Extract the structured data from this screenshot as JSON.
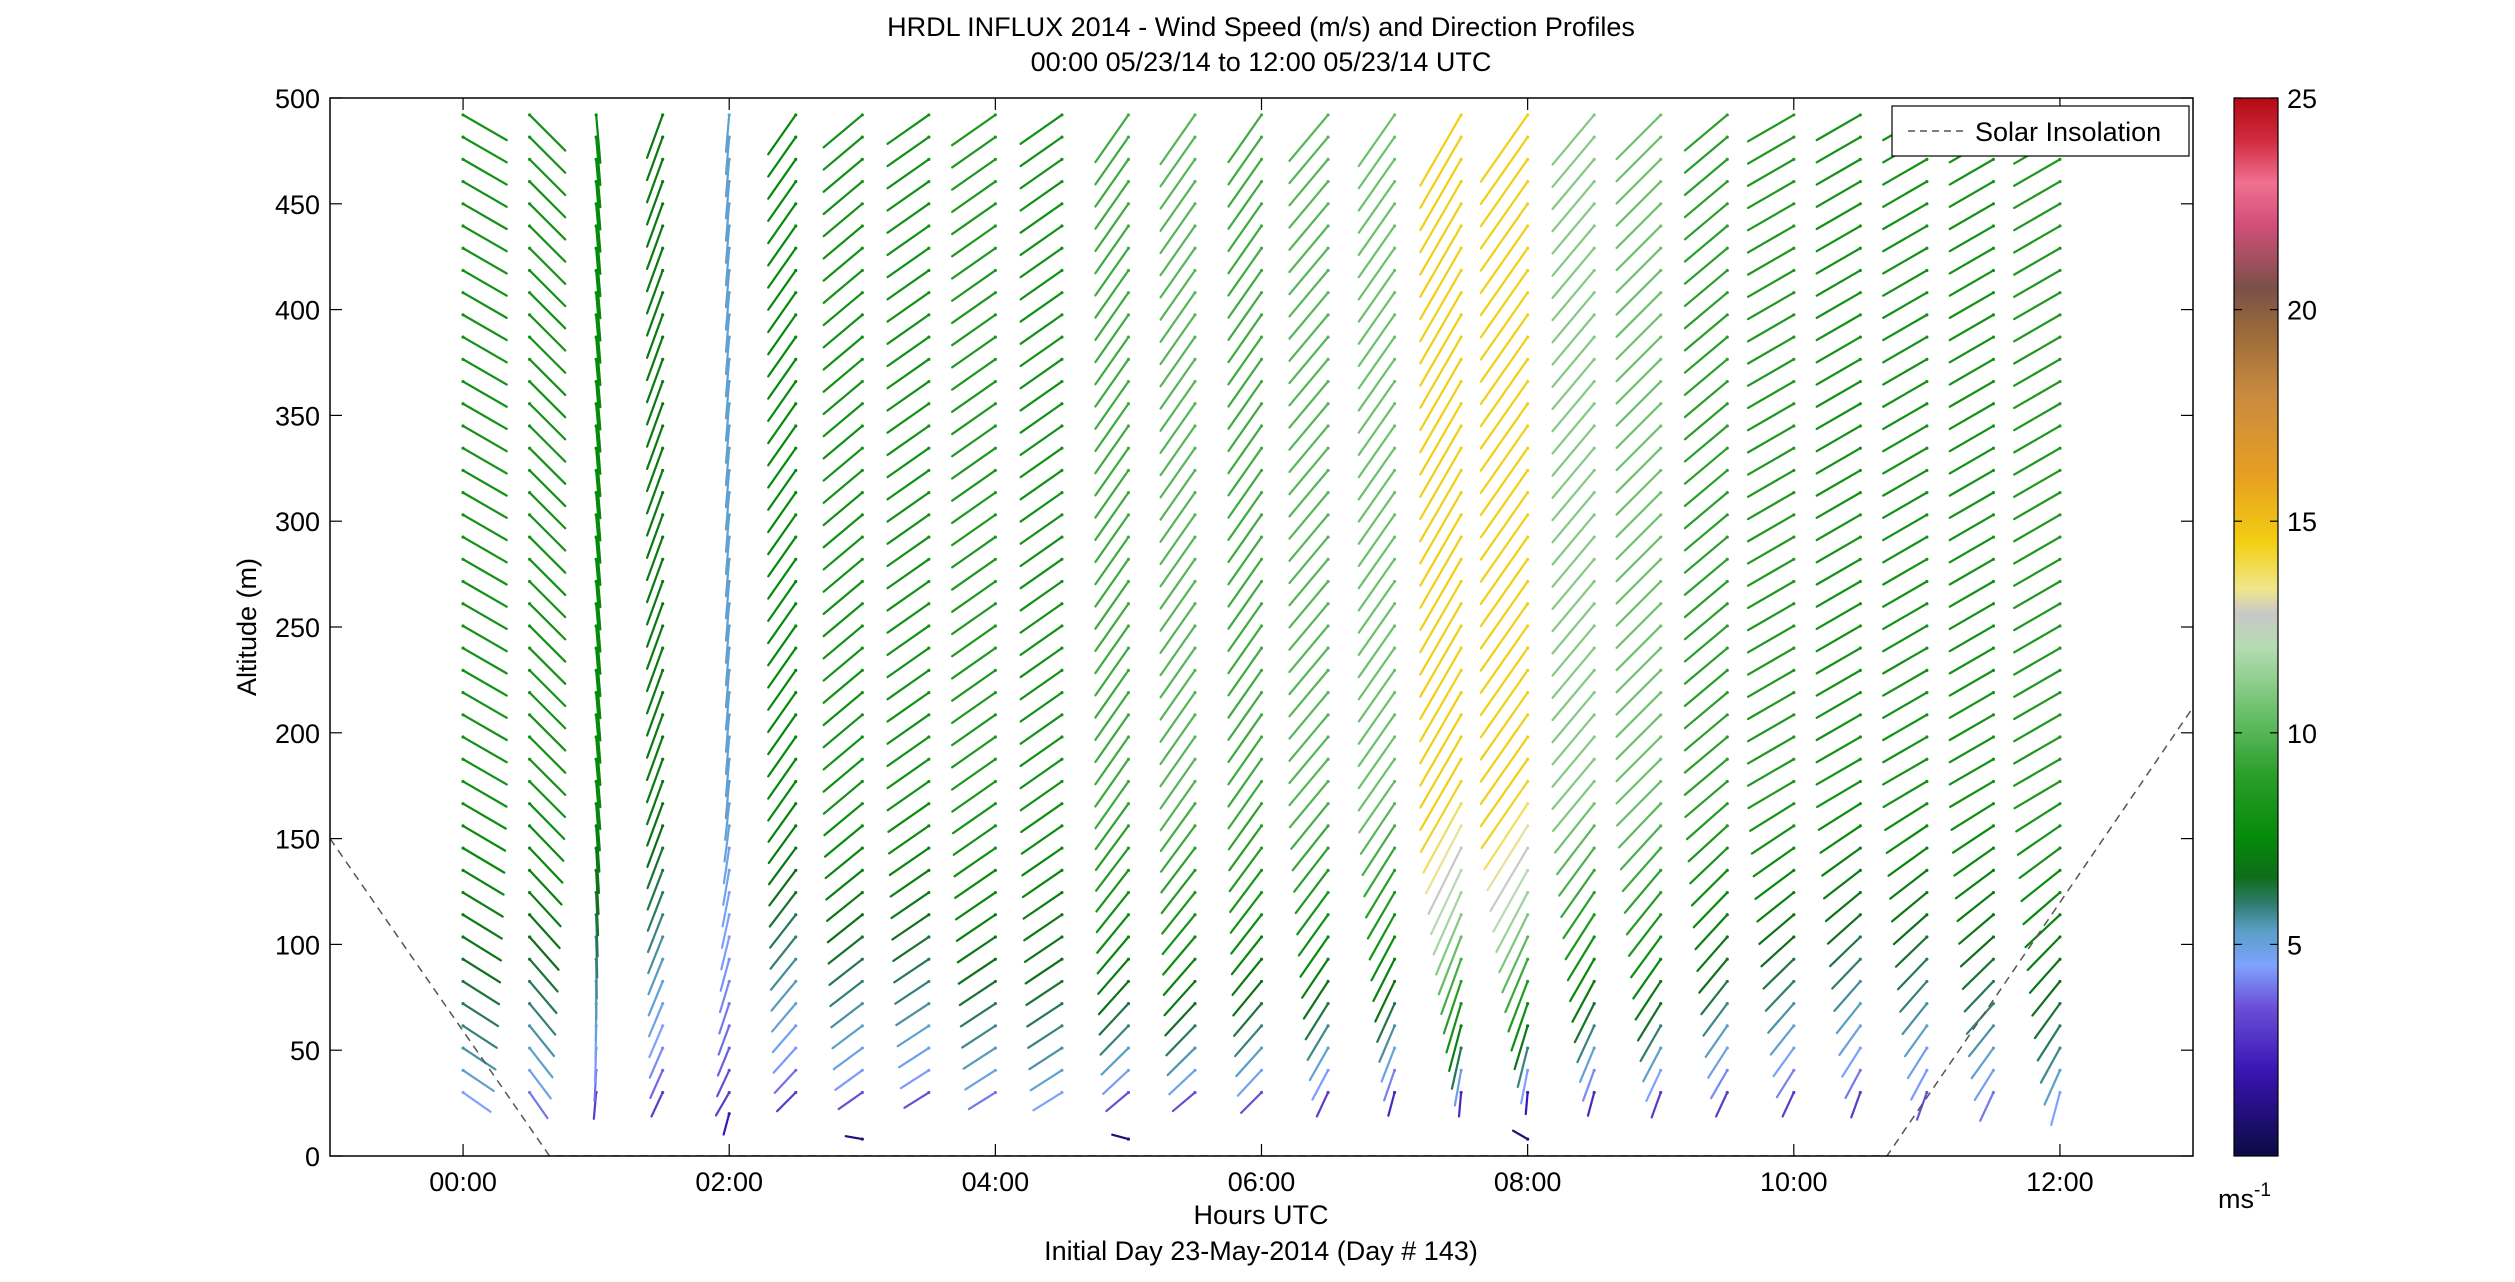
{
  "chart_data": {
    "type": "wind-barb-profile",
    "title": "HRDL INFLUX 2014 - Wind Speed (m/s) and Direction Profiles",
    "subtitle": "00:00 05/23/14 to 12:00 05/23/14  UTC",
    "xlabel": "Hours UTC",
    "xlabel2": "Initial Day 23-May-2014 (Day # 143)",
    "ylabel": "Altitude (m)",
    "colorbar_unit": "ms",
    "colorbar_unit_exp": "-1",
    "xlim": [
      -1.0,
      13.0
    ],
    "ylim": [
      0,
      500
    ],
    "x_ticks": [
      {
        "v": 0,
        "label": "00:00"
      },
      {
        "v": 2,
        "label": "02:00"
      },
      {
        "v": 4,
        "label": "04:00"
      },
      {
        "v": 6,
        "label": "06:00"
      },
      {
        "v": 8,
        "label": "08:00"
      },
      {
        "v": 10,
        "label": "10:00"
      },
      {
        "v": 12,
        "label": "12:00"
      }
    ],
    "y_ticks": [
      0,
      50,
      100,
      150,
      200,
      250,
      300,
      350,
      400,
      450,
      500
    ],
    "colorbar_range": [
      0,
      25
    ],
    "colorbar_ticks": [
      5,
      10,
      15,
      20,
      25
    ],
    "colorbar_stops": [
      {
        "v": 0,
        "c": "#0a0a40"
      },
      {
        "v": 2,
        "c": "#3a14b4"
      },
      {
        "v": 3.5,
        "c": "#6a4ed6"
      },
      {
        "v": 4.5,
        "c": "#7fa2ff"
      },
      {
        "v": 5.3,
        "c": "#5aa0c8"
      },
      {
        "v": 6,
        "c": "#2e7a6a"
      },
      {
        "v": 6.6,
        "c": "#0e6e18"
      },
      {
        "v": 7.5,
        "c": "#058a0a"
      },
      {
        "v": 9,
        "c": "#2a9e2a"
      },
      {
        "v": 10.5,
        "c": "#6cc06c"
      },
      {
        "v": 12,
        "c": "#b4dcb0"
      },
      {
        "v": 12.8,
        "c": "#c8c8c8"
      },
      {
        "v": 13.4,
        "c": "#f0e68c"
      },
      {
        "v": 14.5,
        "c": "#f2cf12"
      },
      {
        "v": 16,
        "c": "#e8a020"
      },
      {
        "v": 18,
        "c": "#c88a40"
      },
      {
        "v": 19.5,
        "c": "#9a6a3a"
      },
      {
        "v": 20.5,
        "c": "#7a5048"
      },
      {
        "v": 22,
        "c": "#d0507a"
      },
      {
        "v": 23,
        "c": "#f07090"
      },
      {
        "v": 24,
        "c": "#d22a40"
      },
      {
        "v": 25,
        "c": "#b40a14"
      }
    ],
    "legend": {
      "label": "Solar Insolation",
      "position": "top-right"
    },
    "solar_insolation": [
      {
        "x": -1.0,
        "y": 150
      },
      {
        "x": 0.65,
        "y": 0
      },
      {
        "x": 10.7,
        "y": 0
      },
      {
        "x": 13.0,
        "y": 212
      }
    ],
    "profiles": [
      {
        "t": 0.0,
        "dir_top": 300,
        "dir_low": 305,
        "spd_top": 8.0,
        "spd_low": 4.5
      },
      {
        "t": 0.5,
        "dir_top": 315,
        "dir_low": 325,
        "spd_top": 8.0,
        "spd_low": 4.0
      },
      {
        "t": 1.0,
        "dir_top": 355,
        "dir_low": 5,
        "spd_top": 7.5,
        "spd_low": 3.0
      },
      {
        "t": 1.5,
        "dir_top": 20,
        "dir_low": 25,
        "spd_top": 7.0,
        "spd_low": 3.0
      },
      {
        "t": 2.0,
        "dir_top": 5,
        "dir_low": 30,
        "spd_top": 5.2,
        "spd_low": 3.0
      },
      {
        "t": 2.5,
        "dir_top": 35,
        "dir_low": 45,
        "spd_top": 7.5,
        "spd_low": 3.0
      },
      {
        "t": 3.0,
        "dir_top": 50,
        "dir_low": 55,
        "spd_top": 8.0,
        "spd_low": 3.5
      },
      {
        "t": 3.5,
        "dir_top": 55,
        "dir_low": 58,
        "spd_top": 8.0,
        "spd_low": 3.5
      },
      {
        "t": 4.0,
        "dir_top": 55,
        "dir_low": 58,
        "spd_top": 8.5,
        "spd_low": 4.0
      },
      {
        "t": 4.5,
        "dir_top": 55,
        "dir_low": 58,
        "spd_top": 8.0,
        "spd_low": 4.5
      },
      {
        "t": 5.0,
        "dir_top": 35,
        "dir_low": 50,
        "spd_top": 9.5,
        "spd_low": 3.5
      },
      {
        "t": 5.5,
        "dir_top": 35,
        "dir_low": 50,
        "spd_top": 10.0,
        "spd_low": 3.5
      },
      {
        "t": 6.0,
        "dir_top": 35,
        "dir_low": 45,
        "spd_top": 9.5,
        "spd_low": 3.5
      },
      {
        "t": 6.5,
        "dir_top": 40,
        "dir_low": 25,
        "spd_top": 10.0,
        "spd_low": 3.0
      },
      {
        "t": 7.0,
        "dir_top": 35,
        "dir_low": 15,
        "spd_top": 10.5,
        "spd_low": 2.5
      },
      {
        "t": 7.5,
        "dir_top": 30,
        "dir_low": 5,
        "spd_top": 14.5,
        "spd_low": 2.5
      },
      {
        "t": 8.0,
        "dir_top": 35,
        "dir_low": 5,
        "spd_top": 14.5,
        "spd_low": 2.0
      },
      {
        "t": 8.5,
        "dir_top": 40,
        "dir_low": 15,
        "spd_top": 11.0,
        "spd_low": 2.5
      },
      {
        "t": 9.0,
        "dir_top": 45,
        "dir_low": 20,
        "spd_top": 10.5,
        "spd_low": 3.0
      },
      {
        "t": 9.5,
        "dir_top": 50,
        "dir_low": 25,
        "spd_top": 9.0,
        "spd_low": 3.0
      },
      {
        "t": 10.0,
        "dir_top": 60,
        "dir_low": 25,
        "spd_top": 8.5,
        "spd_low": 3.0
      },
      {
        "t": 10.5,
        "dir_top": 60,
        "dir_low": 20,
        "spd_top": 8.0,
        "spd_low": 3.0
      },
      {
        "t": 11.0,
        "dir_top": 60,
        "dir_low": 20,
        "spd_top": 8.0,
        "spd_low": 3.5
      },
      {
        "t": 11.5,
        "dir_top": 60,
        "dir_low": 25,
        "spd_top": 8.0,
        "spd_low": 4.0
      },
      {
        "t": 12.0,
        "dir_top": 60,
        "dir_low": 15,
        "spd_top": 8.5,
        "spd_low": 4.5
      }
    ],
    "near_surface_barbs": [
      {
        "t": 2.0,
        "alt": 20,
        "dir": 15,
        "spd": 2.0
      },
      {
        "t": 3.0,
        "alt": 8,
        "dir": 100,
        "spd": 1.0
      },
      {
        "t": 5.0,
        "alt": 8,
        "dir": 105,
        "spd": 1.0
      },
      {
        "t": 8.0,
        "alt": 8,
        "dir": 120,
        "spd": 1.0
      }
    ]
  }
}
